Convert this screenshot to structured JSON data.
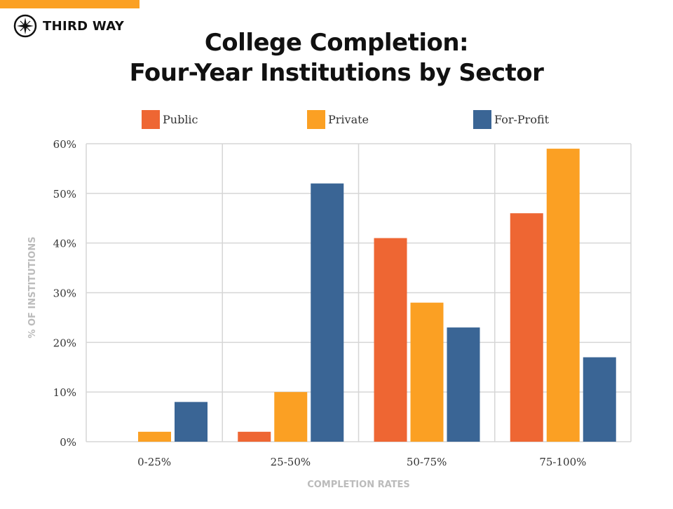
{
  "brand": {
    "name": "THIRD WAY",
    "accent": "#fba023"
  },
  "chart_data": {
    "type": "bar",
    "title_lines": [
      "College Completion:",
      "Four-Year Institutions by Sector"
    ],
    "xlabel": "COMPLETION RATES",
    "ylabel": "% OF INSTITUTIONS",
    "categories": [
      "0-25%",
      "25-50%",
      "50-75%",
      "75-100%"
    ],
    "ylim": [
      0,
      60
    ],
    "yticks": [
      "0%",
      "10%",
      "20%",
      "30%",
      "40%",
      "50%",
      "60%"
    ],
    "grid": true,
    "legend_placement": "top",
    "series": [
      {
        "name": "Public",
        "color": "#ee6633",
        "values": [
          0,
          2,
          41,
          46
        ]
      },
      {
        "name": "Private",
        "color": "#fba023",
        "values": [
          2,
          10,
          28,
          59
        ]
      },
      {
        "name": "For-Profit",
        "color": "#3a6595",
        "values": [
          8,
          52,
          23,
          17
        ]
      }
    ]
  }
}
